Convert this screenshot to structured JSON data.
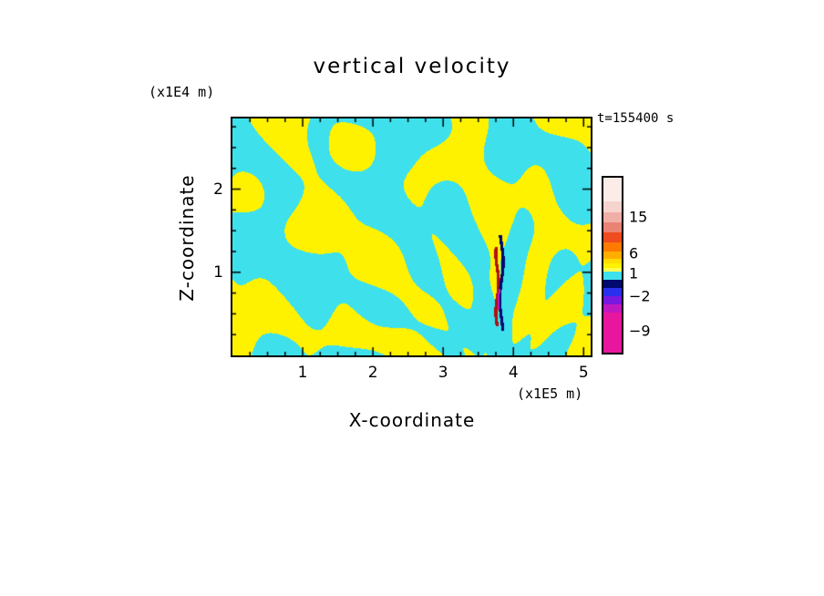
{
  "title": "vertical velocity",
  "time_label": "t=155400 s",
  "axes": {
    "x": {
      "label": "X-coordinate",
      "unit": "(x1E5 m)",
      "ticks": [
        "1",
        "2",
        "3",
        "4",
        "5"
      ]
    },
    "z": {
      "label": "Z-coordinate",
      "unit": "(x1E4 m)",
      "ticks": [
        "1",
        "2"
      ]
    }
  },
  "colorbar": {
    "labels": [
      {
        "text": "15",
        "y": 238
      },
      {
        "text": "6",
        "y": 278
      },
      {
        "text": "1",
        "y": 300
      },
      {
        "text": "−2",
        "y": 325
      },
      {
        "text": "−9",
        "y": 363
      }
    ],
    "segments_top_to_bottom": [
      {
        "color": "#FBECE8",
        "h": 26
      },
      {
        "color": "#F6D4CE",
        "h": 12
      },
      {
        "color": "#F0AFA6",
        "h": 11
      },
      {
        "color": "#EB8374",
        "h": 11
      },
      {
        "color": "#EF4B1E",
        "h": 11
      },
      {
        "color": "#FF7A00",
        "h": 10
      },
      {
        "color": "#FFAE00",
        "h": 8
      },
      {
        "color": "#FFDC00",
        "h": 5
      },
      {
        "color": "#FFF200",
        "h": 5
      },
      {
        "color": "#FFFF50",
        "h": 4
      },
      {
        "color": "#3EE0EC",
        "h": 9
      },
      {
        "color": "#000A6E",
        "h": 9
      },
      {
        "color": "#2830EE",
        "h": 9
      },
      {
        "color": "#7818E0",
        "h": 9
      },
      {
        "color": "#C018C0",
        "h": 9
      },
      {
        "color": "#E8169E",
        "h": 44
      }
    ]
  },
  "chart_data": {
    "type": "heatmap",
    "title": "vertical velocity",
    "xlabel": "X-coordinate (x1E5 m)",
    "ylabel": "Z-coordinate (x1E4 m)",
    "time_annotation": "t=155400 s",
    "x_ticks": [
      1,
      2,
      3,
      4,
      5
    ],
    "z_ticks": [
      1,
      2
    ],
    "x_range": [
      0,
      5.1
    ],
    "z_range": [
      0,
      2.85
    ],
    "minor_tick_interval": 0.25,
    "grid": false,
    "legend_position": "right-colorbar",
    "labeled_levels": [
      15,
      6,
      1,
      -2,
      -9
    ],
    "palette_low_to_high": [
      "#E8169E",
      "#C018C0",
      "#7818E0",
      "#2830EE",
      "#000A6E",
      "#3EE0EC",
      "#FFFF50",
      "#FFF200",
      "#FFDC00",
      "#FFAE00",
      "#FF7A00",
      "#EF4B1E",
      "#EB8374",
      "#F0AFA6",
      "#F6D4CE",
      "#FBECE8"
    ],
    "field_colors": {
      "negative_bin": "#3EE0EC",
      "positive_bin": "#FFF200"
    },
    "description": "Filled-contour x-z cross-section of vertical velocity at t=155400 s. The field alternates between the cyan (-2..1) and yellow (1..6) contour bins in a turbulent wave/fan pattern, with a narrow strong up/downdraft column near x=3.8E5 m, z=0.3-1.45E4 m reaching the dark-blue, dark-red and magenta bins.",
    "texture": {
      "threshold": 0.12,
      "waves": [
        [
          2.6,
          1.9,
          0.7,
          0.9
        ],
        [
          4.8,
          -3.7,
          2.1,
          0.7
        ],
        [
          1.7,
          5.2,
          4.2,
          0.8
        ],
        [
          7.3,
          2.8,
          1.1,
          0.45
        ],
        [
          6.1,
          6.1,
          0.3,
          0.4
        ],
        [
          3.3,
          -7.5,
          2.8,
          0.35
        ]
      ],
      "fan": {
        "cx": 3.75,
        "cz": -0.4,
        "rays": 16,
        "amp": 1.3,
        "rk": 1.2,
        "r0": 1.6,
        "rw": 1.8
      },
      "streaks": [
        {
          "x": 3.77,
          "w": 0.022,
          "z0": 0.35,
          "z1": 1.3,
          "color": "#B01010",
          "wf": 9,
          "wa": 0.02
        },
        {
          "x": 3.83,
          "w": 0.022,
          "z0": 0.3,
          "z1": 1.45,
          "color": "#000A6E",
          "wf": 7,
          "wa": 0.025
        },
        {
          "x": 3.8,
          "w": 0.014,
          "z0": 0.55,
          "z1": 0.8,
          "color": "#C018C0",
          "wf": 8,
          "wa": 0.015
        }
      ]
    }
  }
}
